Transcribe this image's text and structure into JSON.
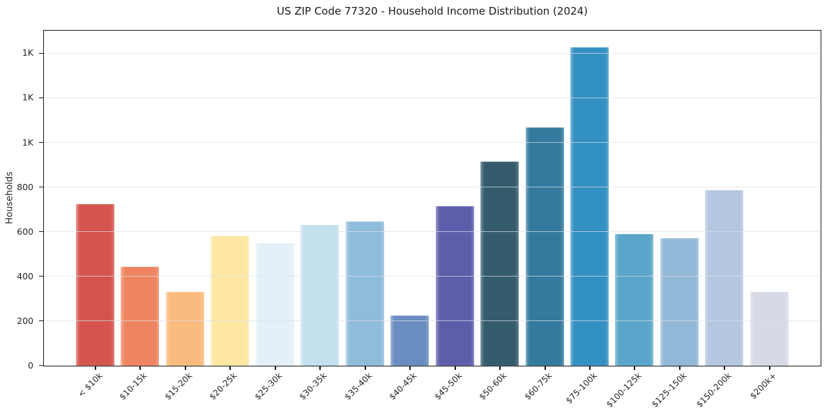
{
  "figure": {
    "title": "US ZIP Code 77320 - Household Income Distribution (2024)"
  },
  "colors": {
    "background": "#ffffff",
    "spine": "#1a1a1a",
    "gridline": "#e3e6ec",
    "text": "#262626"
  },
  "chart_data": {
    "type": "bar",
    "title": "US ZIP Code 77320 - Household Income Distribution (2024)",
    "xlabel": "",
    "ylabel": "Households",
    "ylim": [
      0,
      1500
    ],
    "grid": true,
    "legend": false,
    "categories": [
      "< $10k",
      "$10-15k",
      "$15-20k",
      "$20-25k",
      "$25-30k",
      "$30-35k",
      "$35-40k",
      "$40-45k",
      "$45-50k",
      "$50-60k",
      "$60-75k",
      "$75-100k",
      "$100-125k",
      "$125-150k",
      "$150-200k",
      "$200k+"
    ],
    "values": [
      725,
      445,
      332,
      581,
      551,
      631,
      648,
      226,
      716,
      916,
      1069,
      1428,
      591,
      572,
      788,
      331
    ],
    "bar_colors": [
      "#d5544e",
      "#ef8560",
      "#fabc7e",
      "#fde7a2",
      "#e4f0f7",
      "#c2e0ee",
      "#8fbcdb",
      "#6a8dc1",
      "#5d5dab",
      "#355c6d",
      "#337a9e",
      "#3390c3",
      "#5aa5ca",
      "#92b8d8",
      "#b5c6e0",
      "#d7d9e6"
    ],
    "yticks": [
      {
        "value": 0,
        "label": "0"
      },
      {
        "value": 200,
        "label": "200"
      },
      {
        "value": 400,
        "label": "400"
      },
      {
        "value": 600,
        "label": "600"
      },
      {
        "value": 800,
        "label": "800"
      },
      {
        "value": 1000,
        "label": "1K"
      },
      {
        "value": 1200,
        "label": "1K"
      },
      {
        "value": 1400,
        "label": "1K"
      }
    ]
  }
}
